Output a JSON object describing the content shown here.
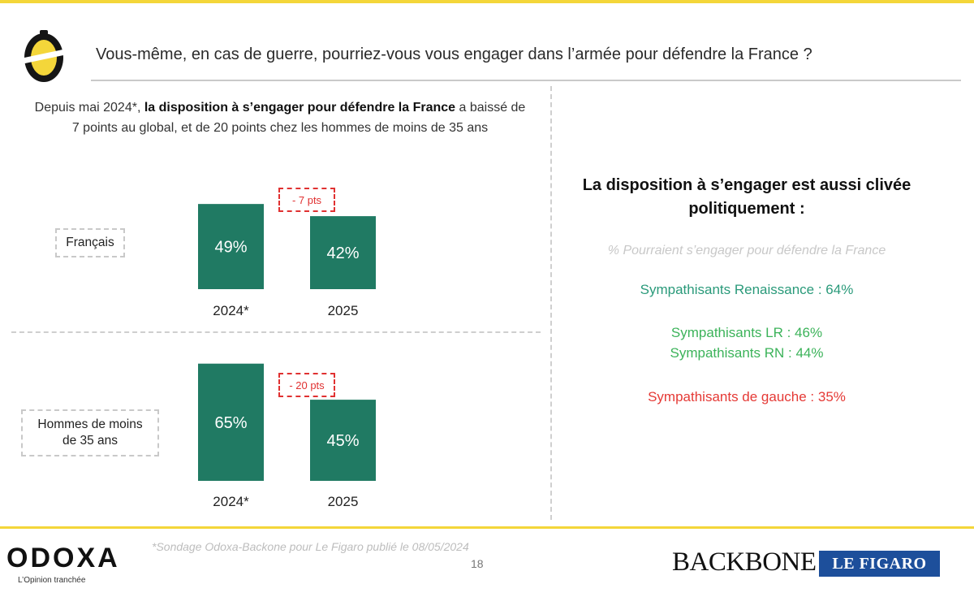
{
  "header": {
    "question": "Vous-même, en cas de guerre, pourriez-vous vous engager dans l’armée pour défendre la France ?"
  },
  "intro": {
    "prefix": "Depuis mai 2024*, ",
    "highlight": "la disposition à s’engager pour défendre la France",
    "suffix": " a baissé de 7 points au global, et de 20 points chez les hommes de moins de 35 ans"
  },
  "chart_data": [
    {
      "type": "bar",
      "group_label": "Français",
      "categories": [
        "2024*",
        "2025"
      ],
      "values": [
        49,
        42
      ],
      "value_labels": [
        "49%",
        "42%"
      ],
      "delta_label": "- 7 pts",
      "ylim": [
        0,
        70
      ]
    },
    {
      "type": "bar",
      "group_label": "Hommes de moins de 35 ans",
      "categories": [
        "2024*",
        "2025"
      ],
      "values": [
        65,
        45
      ],
      "value_labels": [
        "65%",
        "45%"
      ],
      "delta_label": "- 20 pts",
      "ylim": [
        0,
        70
      ]
    }
  ],
  "colors": {
    "bar": "#207a63",
    "accent_yellow": "#f4d63a",
    "delta_red": "#e03131"
  },
  "side": {
    "title": "La disposition à s’engager est aussi clivée politiquement :",
    "subtitle": "% Pourraient s’engager pour défendre la France",
    "items": [
      {
        "label": "Sympathisants Renaissance : 64%",
        "color": "#2a9a7a"
      },
      {
        "label": "Sympathisants LR : 46%",
        "color": "#3cb35a"
      },
      {
        "label": "Sympathisants RN : 44%",
        "color": "#3cb35a"
      },
      {
        "label": "Sympathisants de gauche : 35%",
        "color": "#e53935"
      }
    ]
  },
  "footer": {
    "brand": "ODOXA",
    "tagline": "L’Opinion tranchée",
    "source": "*Sondage Odoxa-Backone pour Le Figaro publié le 08/05/2024",
    "page_number": "18",
    "partner1": "BACKBONE",
    "partner2": "LE FIGARO"
  }
}
